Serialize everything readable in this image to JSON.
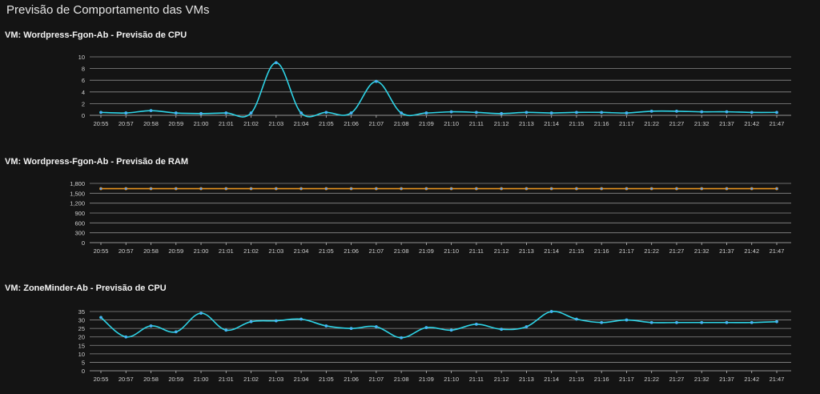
{
  "page": {
    "title": "Previsão de Comportamento das VMs"
  },
  "chart_data": [
    {
      "type": "line",
      "title": "VM: Wordpress-Fgon-Ab - Previsão de CPU",
      "categories": [
        "20:55",
        "20:57",
        "20:58",
        "20:59",
        "21:00",
        "21:01",
        "21:02",
        "21:03",
        "21:04",
        "21:05",
        "21:06",
        "21:07",
        "21:08",
        "21:09",
        "21:10",
        "21:11",
        "21:12",
        "21:13",
        "21:14",
        "21:15",
        "21:16",
        "21:17",
        "21:22",
        "21:27",
        "21:32",
        "21:37",
        "21:42",
        "21:47"
      ],
      "yticks": [
        0,
        2,
        4,
        6,
        8,
        10
      ],
      "ylim": [
        0,
        10
      ],
      "grid": true,
      "series": [
        {
          "color": "#2ed3e6",
          "values": [
            0.5,
            0.4,
            0.8,
            0.4,
            0.3,
            0.4,
            0.4,
            9.0,
            0.4,
            0.5,
            0.4,
            5.8,
            0.4,
            0.4,
            0.6,
            0.5,
            0.3,
            0.5,
            0.4,
            0.5,
            0.5,
            0.4,
            0.7,
            0.7,
            0.6,
            0.6,
            0.5,
            0.5
          ]
        }
      ]
    },
    {
      "type": "line",
      "title": "VM: Wordpress-Fgon-Ab - Previsão de RAM",
      "categories": [
        "20:55",
        "20:57",
        "20:58",
        "20:59",
        "21:00",
        "21:01",
        "21:02",
        "21:03",
        "21:04",
        "21:05",
        "21:06",
        "21:07",
        "21:08",
        "21:09",
        "21:10",
        "21:11",
        "21:12",
        "21:13",
        "21:14",
        "21:15",
        "21:16",
        "21:17",
        "21:22",
        "21:27",
        "21:32",
        "21:37",
        "21:42",
        "21:47"
      ],
      "yticks": [
        "0",
        "300",
        "600",
        "900",
        "1,200",
        "1,500",
        "1,800"
      ],
      "ylim": [
        0,
        1800
      ],
      "grid": true,
      "series": [
        {
          "color": "#e8941e",
          "values": [
            1640,
            1640,
            1640,
            1640,
            1640,
            1640,
            1640,
            1640,
            1640,
            1640,
            1640,
            1640,
            1640,
            1640,
            1640,
            1640,
            1640,
            1640,
            1640,
            1640,
            1640,
            1640,
            1640,
            1640,
            1640,
            1640,
            1640,
            1640
          ]
        }
      ]
    },
    {
      "type": "line",
      "title": "VM: ZoneMinder-Ab - Previsão de CPU",
      "categories": [
        "20:55",
        "20:57",
        "20:58",
        "20:59",
        "21:00",
        "21:01",
        "21:02",
        "21:03",
        "21:04",
        "21:05",
        "21:06",
        "21:07",
        "21:08",
        "21:09",
        "21:10",
        "21:11",
        "21:12",
        "21:13",
        "21:14",
        "21:15",
        "21:16",
        "21:17",
        "21:22",
        "21:27",
        "21:32",
        "21:37",
        "21:42",
        "21:47"
      ],
      "yticks": [
        0,
        5,
        10,
        15,
        20,
        25,
        30,
        35
      ],
      "ylim": [
        0,
        35
      ],
      "grid": true,
      "series": [
        {
          "color": "#2ed3e6",
          "values": [
            31.5,
            20,
            26.5,
            23,
            34,
            24,
            29,
            29.5,
            30.5,
            26.5,
            25,
            26,
            19.5,
            25.5,
            24,
            27.5,
            24.5,
            26,
            35,
            30.5,
            28.5,
            30,
            28.5,
            28.5,
            28.5,
            28.5,
            28.5,
            29
          ]
        }
      ]
    }
  ]
}
